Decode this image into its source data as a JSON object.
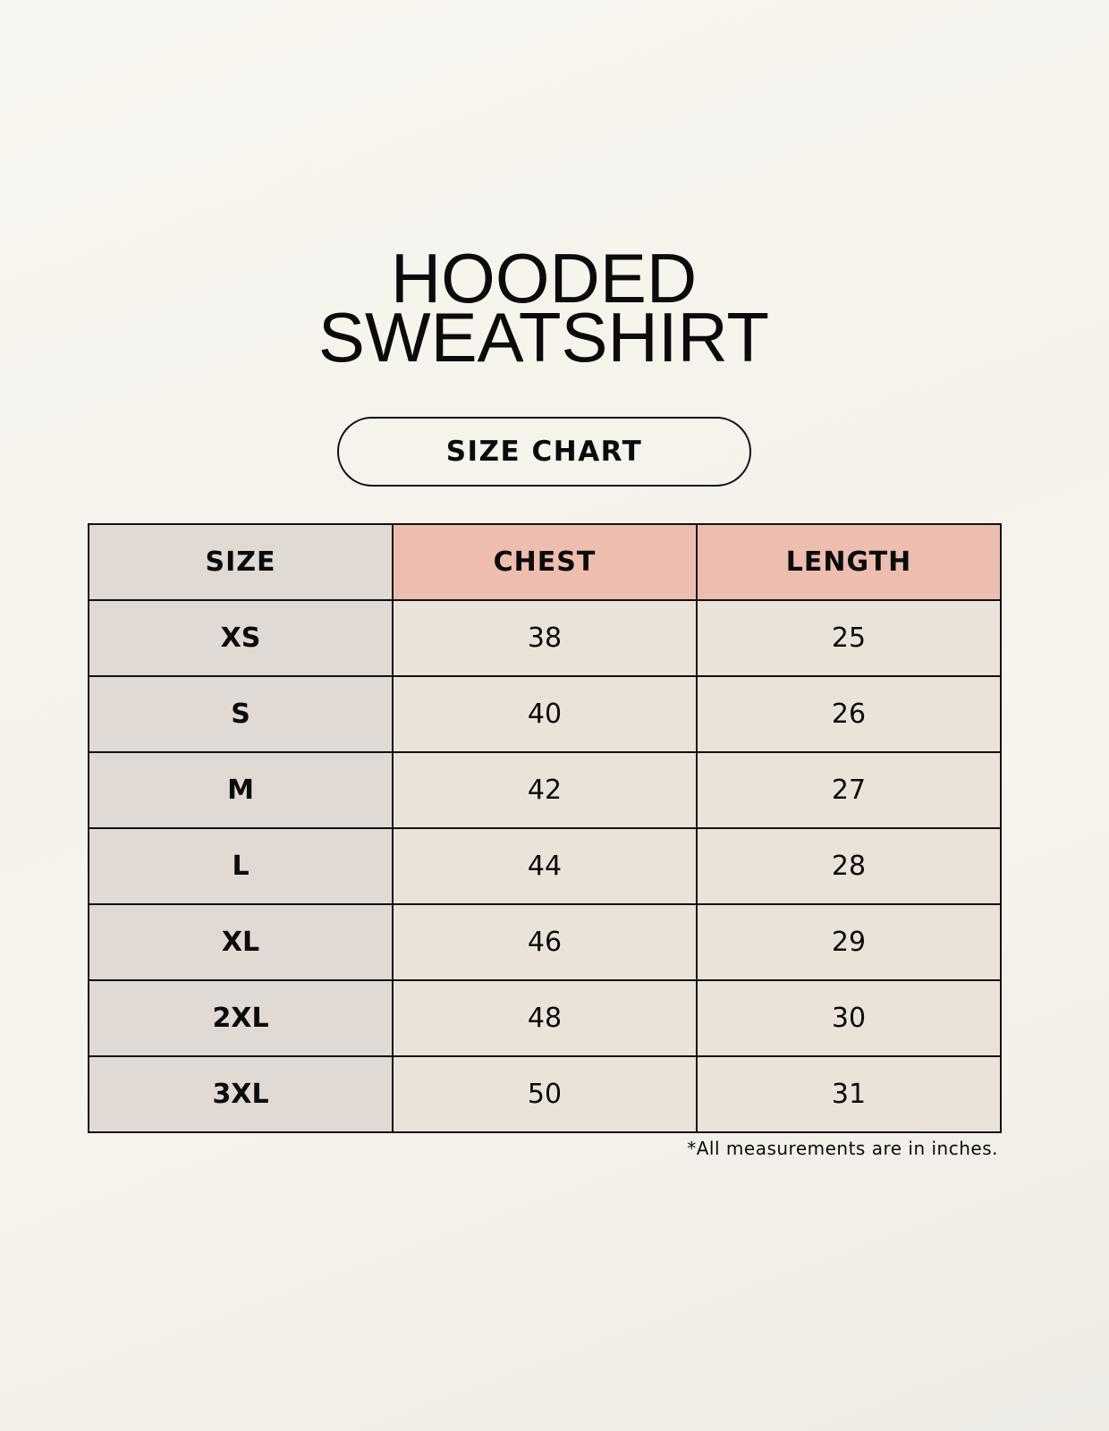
{
  "title": {
    "line1": "HOODED",
    "line2": "SWEATSHIRT"
  },
  "badge": "SIZE CHART",
  "table": {
    "headers": [
      "SIZE",
      "CHEST",
      "LENGTH"
    ],
    "rows": [
      [
        "XS",
        "38",
        "25"
      ],
      [
        "S",
        "40",
        "26"
      ],
      [
        "M",
        "42",
        "27"
      ],
      [
        "L",
        "44",
        "28"
      ],
      [
        "XL",
        "46",
        "29"
      ],
      [
        "2XL",
        "48",
        "30"
      ],
      [
        "3XL",
        "50",
        "31"
      ]
    ]
  },
  "note": "*All measurements are in inches.",
  "colors": {
    "size_column": "#e0d9d4",
    "header_accent": "#edbdb0",
    "value_cells": "#ebe3d9"
  }
}
